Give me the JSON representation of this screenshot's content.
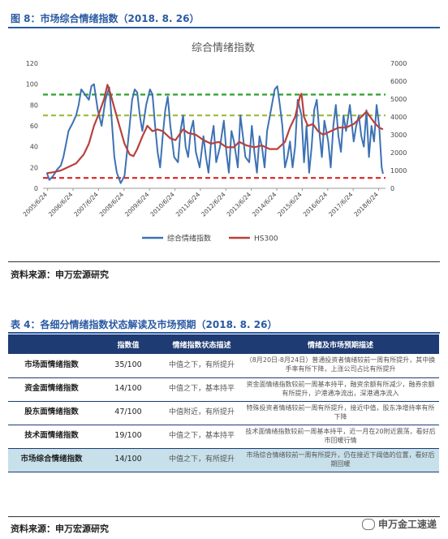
{
  "figure": {
    "title": "图 8：市场综合情绪指数（2018. 8. 26）",
    "source": "资料来源：申万宏源研究"
  },
  "chart_data": {
    "type": "line",
    "title": "综合情绪指数",
    "x_ticks": [
      "2005/6/24",
      "2006/6/24",
      "2007/6/24",
      "2008/6/24",
      "2009/6/24",
      "2010/6/24",
      "2011/6/24",
      "2012/6/24",
      "2013/6/24",
      "2014/6/24",
      "2015/6/24",
      "2016/6/24",
      "2017/6/24",
      "2018/6/24"
    ],
    "y_left_ticks": [
      0,
      20,
      40,
      60,
      80,
      100,
      120
    ],
    "y_right_ticks": [
      0,
      1000,
      2000,
      3000,
      4000,
      5000,
      6000,
      7000
    ],
    "ylim_left": [
      0,
      120
    ],
    "ylim_right": [
      0,
      7000
    ],
    "legend": [
      "综合情绪指数",
      "HS300"
    ],
    "colors": {
      "index": "#3d72b4",
      "hs300": "#b8413c",
      "line90": "#2ca02c",
      "line70": "#9bbb3c",
      "line10": "#e02020"
    },
    "reference_lines": [
      90,
      70,
      10
    ],
    "series": [
      {
        "name": "综合情绪指数",
        "axis": "left",
        "x": [
          2005.45,
          2005.55,
          2005.7,
          2005.85,
          2006.0,
          2006.1,
          2006.2,
          2006.3,
          2006.45,
          2006.6,
          2006.7,
          2006.8,
          2006.95,
          2007.1,
          2007.2,
          2007.3,
          2007.45,
          2007.6,
          2007.75,
          2007.9,
          2008.0,
          2008.1,
          2008.2,
          2008.35,
          2008.5,
          2008.6,
          2008.7,
          2008.8,
          2008.9,
          2009.0,
          2009.1,
          2009.2,
          2009.35,
          2009.5,
          2009.6,
          2009.7,
          2009.8,
          2009.9,
          2010.0,
          2010.1,
          2010.2,
          2010.3,
          2010.45,
          2010.6,
          2010.7,
          2010.8,
          2010.9,
          2011.0,
          2011.1,
          2011.2,
          2011.3,
          2011.45,
          2011.6,
          2011.7,
          2011.8,
          2011.9,
          2012.0,
          2012.1,
          2012.25,
          2012.4,
          2012.5,
          2012.6,
          2012.7,
          2012.8,
          2012.95,
          2013.05,
          2013.15,
          2013.25,
          2013.4,
          2013.5,
          2013.6,
          2013.7,
          2013.8,
          2013.9,
          2014.0,
          2014.1,
          2014.25,
          2014.4,
          2014.5,
          2014.6,
          2014.7,
          2014.8,
          2014.9,
          2015.0,
          2015.1,
          2015.2,
          2015.3,
          2015.45,
          2015.55,
          2015.65,
          2015.75,
          2015.85,
          2015.95,
          2016.05,
          2016.15,
          2016.25,
          2016.35,
          2016.5,
          2016.6,
          2016.7,
          2016.8,
          2016.9,
          2017.0,
          2017.1,
          2017.2,
          2017.35,
          2017.5,
          2017.6,
          2017.7,
          2017.8,
          2017.9,
          2018.0,
          2018.1,
          2018.2,
          2018.3,
          2018.4,
          2018.5,
          2018.6,
          2018.65
        ],
        "values": [
          15,
          8,
          12,
          18,
          22,
          30,
          42,
          55,
          62,
          70,
          80,
          95,
          90,
          85,
          98,
          100,
          75,
          60,
          85,
          97,
          65,
          30,
          15,
          5,
          12,
          35,
          60,
          85,
          95,
          92,
          70,
          55,
          80,
          95,
          90,
          60,
          35,
          20,
          50,
          75,
          88,
          60,
          30,
          25,
          55,
          70,
          40,
          30,
          55,
          65,
          35,
          20,
          50,
          30,
          15,
          45,
          60,
          25,
          40,
          65,
          35,
          15,
          55,
          45,
          20,
          70,
          50,
          30,
          25,
          60,
          35,
          15,
          50,
          40,
          20,
          55,
          75,
          95,
          98,
          80,
          60,
          20,
          30,
          45,
          20,
          40,
          85,
          70,
          25,
          60,
          15,
          40,
          75,
          85,
          55,
          30,
          65,
          45,
          20,
          60,
          80,
          50,
          35,
          70,
          55,
          80,
          45,
          60,
          70,
          50,
          40,
          75,
          30,
          60,
          45,
          80,
          60,
          20,
          14
        ]
      },
      {
        "name": "HS300",
        "axis": "right",
        "x": [
          2005.45,
          2005.7,
          2006.0,
          2006.3,
          2006.6,
          2006.9,
          2007.1,
          2007.3,
          2007.5,
          2007.7,
          2007.83,
          2007.95,
          2008.1,
          2008.3,
          2008.5,
          2008.7,
          2008.85,
          2009.0,
          2009.2,
          2009.4,
          2009.6,
          2009.8,
          2010.0,
          2010.3,
          2010.5,
          2010.8,
          2011.0,
          2011.3,
          2011.6,
          2011.9,
          2012.2,
          2012.5,
          2012.8,
          2013.0,
          2013.3,
          2013.6,
          2013.9,
          2014.2,
          2014.5,
          2014.8,
          2015.0,
          2015.2,
          2015.4,
          2015.45,
          2015.55,
          2015.7,
          2015.9,
          2016.1,
          2016.3,
          2016.6,
          2016.9,
          2017.2,
          2017.5,
          2017.8,
          2018.0,
          2018.1,
          2018.3,
          2018.5,
          2018.65
        ],
        "values": [
          850,
          900,
          1000,
          1200,
          1400,
          1900,
          2500,
          3500,
          4200,
          5000,
          5800,
          5300,
          4500,
          3500,
          2500,
          1900,
          1800,
          2200,
          2900,
          3500,
          3200,
          3300,
          3200,
          2800,
          2700,
          3300,
          3100,
          3000,
          2700,
          2500,
          2600,
          2300,
          2300,
          2600,
          2400,
          2300,
          2400,
          2200,
          2200,
          2600,
          3400,
          4000,
          5200,
          5300,
          4000,
          3500,
          3600,
          3200,
          3000,
          3200,
          3400,
          3400,
          3600,
          4000,
          4300,
          4100,
          3700,
          3400,
          3300
        ]
      }
    ]
  },
  "table": {
    "title": "表 4：各细分情绪指数状态解读及市场预期（2018. 8. 26）",
    "headers": [
      "",
      "指数值",
      "情绪指数状态描述",
      "情绪及市场预期描述"
    ],
    "rows": [
      {
        "name": "市场面情绪指数",
        "value": "35/100",
        "status": "中值之下，有所提升",
        "desc": "（8月20日-8月24日）普通投资者情绪较前一周有所提升，其中换手率有所下降，上涨公司占比有所提升"
      },
      {
        "name": "资金面情绪指数",
        "value": "14/100",
        "status": "中值之下，基本持平",
        "desc": "资金面情绪指数较前一周基本持平，融资余额有所减少，融券余额有所提升，沪港通净流出，深港通净流入"
      },
      {
        "name": "股东面情绪指数",
        "value": "47/100",
        "status": "中值附近，有所提升",
        "desc": "特殊投资者情绪较前一周有所提升，接近中值，股东净增持率有所下降"
      },
      {
        "name": "技术面情绪指数",
        "value": "19/100",
        "status": "中值之下，基本持平",
        "desc": "技术面情绪指数较前一周基本持平，近一月在20附近震荡，看好后市回暖行情"
      },
      {
        "name": "市场综合情绪指数",
        "value": "14/100",
        "status": "中值之下，有所提升",
        "desc": "市场综合情绪较前一周有所提升，仍在接近下阈值的位置，看好后期回暖"
      }
    ],
    "source": "资料来源：申万宏源研究"
  },
  "watermark": "申万金工速递"
}
